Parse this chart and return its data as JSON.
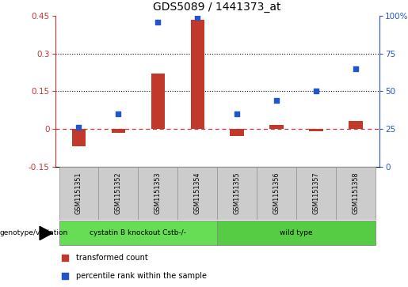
{
  "title": "GDS5089 / 1441373_at",
  "samples": [
    "GSM1151351",
    "GSM1151352",
    "GSM1151353",
    "GSM1151354",
    "GSM1151355",
    "GSM1151356",
    "GSM1151357",
    "GSM1151358"
  ],
  "bar_values": [
    -0.07,
    -0.015,
    0.22,
    0.435,
    -0.03,
    0.015,
    -0.01,
    0.03
  ],
  "scatter_values": [
    26,
    35,
    96,
    99,
    35,
    44,
    50,
    65
  ],
  "ylim_left": [
    -0.15,
    0.45
  ],
  "ylim_right": [
    0,
    100
  ],
  "yticks_left": [
    -0.15,
    0.0,
    0.15,
    0.3,
    0.45
  ],
  "yticks_right": [
    0,
    25,
    50,
    75,
    100
  ],
  "ytick_labels_left": [
    "-0.15",
    "0",
    "0.15",
    "0.3",
    "0.45"
  ],
  "ytick_labels_right": [
    "0",
    "25",
    "50",
    "75",
    "100%"
  ],
  "hlines": [
    0.15,
    0.3
  ],
  "bar_color": "#c0392b",
  "scatter_color": "#2255cc",
  "dashed_line_color": "#cc3333",
  "group1_label": "cystatin B knockout Cstb-/-",
  "group2_label": "wild type",
  "group1_indices": [
    0,
    1,
    2,
    3
  ],
  "group2_indices": [
    4,
    5,
    6,
    7
  ],
  "group1_color": "#66dd55",
  "group2_color": "#55cc44",
  "genotype_label": "genotype/variation",
  "legend_bar_label": "transformed count",
  "legend_scatter_label": "percentile rank within the sample",
  "bg_color": "#ffffff",
  "plot_bg_color": "#ffffff",
  "tick_label_color_left": "#cc3333",
  "tick_label_color_right": "#2255cc",
  "bar_width": 0.35,
  "title_fontsize": 10,
  "tick_fontsize": 7.5,
  "label_fontsize": 7
}
